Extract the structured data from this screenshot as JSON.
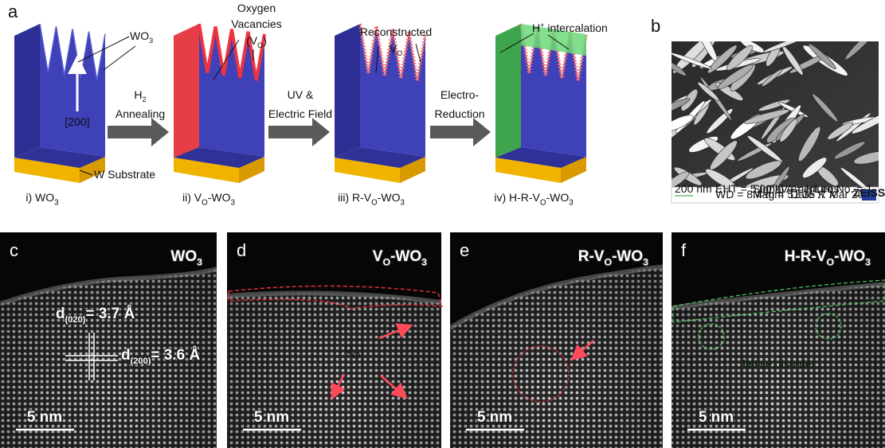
{
  "panel_a": {
    "label": "a",
    "callouts": {
      "wo3": [
        "WO",
        "3"
      ],
      "oxygen": [
        "Oxygen"
      ],
      "vacancies": [
        "Vacancies"
      ],
      "vo": [
        "(V",
        "O",
        ")"
      ],
      "reconstructed": [
        "Reconstructed"
      ],
      "reconstructed_vo": [
        "V",
        "O"
      ],
      "h_intercalation": [
        "H",
        "+",
        " intercalation"
      ],
      "direction": [
        "[200]"
      ],
      "substrate": [
        "W Substrate"
      ]
    },
    "steps": [
      {
        "line1": [
          "H",
          "2"
        ],
        "line2": [
          "Annealing"
        ]
      },
      {
        "line1": [
          "UV &"
        ],
        "line2": [
          "Electric Field"
        ]
      },
      {
        "line1": [
          "Electro-"
        ],
        "line2": [
          "Reduction"
        ]
      }
    ],
    "stages": [
      [
        "i) WO",
        "3"
      ],
      [
        "ii) V",
        "O",
        "-WO",
        "3"
      ],
      [
        "iii) R-V",
        "O",
        "-WO",
        "3"
      ],
      [
        "iv) H-R-V",
        "O",
        "-WO",
        "3"
      ]
    ]
  },
  "panel_b": {
    "label": "b",
    "scale_bar": "200 nm",
    "info": [
      "EHT = 5.00 kV",
      "WD = 8.4 mm",
      "Signal A = InLens",
      "Mag = 51.35 K X",
      "Aperture No. = 1",
      "Date :7 Mar 2018"
    ],
    "logo": "ZEISS"
  },
  "panels": [
    {
      "label": "c",
      "title": [
        "WO",
        "3"
      ],
      "scale_bar": "5 nm",
      "d_020": [
        "d",
        "(020)",
        "= 3.7 Å"
      ],
      "d_200": [
        "d",
        "(200)",
        "= 3.6 Å"
      ]
    },
    {
      "label": "d",
      "title": [
        "V",
        "O",
        "-WO",
        "3"
      ],
      "scale_bar": "5 nm",
      "vo": [
        "V",
        "O"
      ]
    },
    {
      "label": "e",
      "title": [
        "R-V",
        "O",
        "-WO",
        "3"
      ],
      "scale_bar": "5 nm"
    },
    {
      "label": "f",
      "title": [
        "H-R-V",
        "O",
        "-WO",
        "3"
      ],
      "scale_bar": "5 nm",
      "note": [
        "lattice disorder"
      ]
    }
  ]
}
